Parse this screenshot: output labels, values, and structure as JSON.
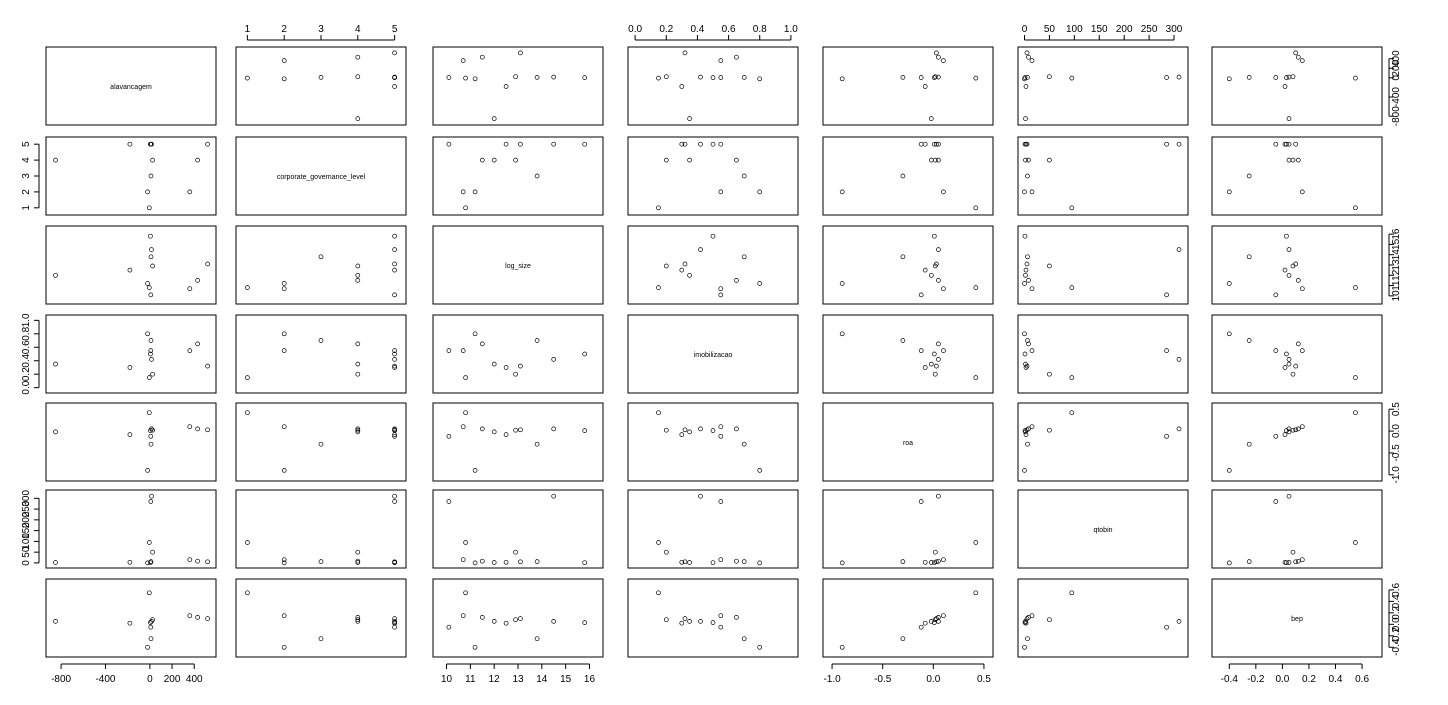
{
  "chart_data": {
    "type": "scatter",
    "subtype": "scatterplot-matrix",
    "variables": [
      {
        "name": "alavancagem",
        "range": [
          -900,
          560
        ],
        "ticks": [
          {
            "v": -800,
            "t": "-800"
          },
          {
            "v": -400,
            "t": "-400"
          },
          {
            "v": 0,
            "t": "0"
          },
          {
            "v": 200,
            "t": "200"
          },
          {
            "v": 400,
            "t": "400"
          }
        ]
      },
      {
        "name": "corporate_governance_level",
        "range": [
          0.8,
          5.2
        ],
        "ticks": [
          {
            "v": 1,
            "t": "1"
          },
          {
            "v": 2,
            "t": "2"
          },
          {
            "v": 3,
            "t": "3"
          },
          {
            "v": 4,
            "t": "4"
          },
          {
            "v": 5,
            "t": "5"
          }
        ]
      },
      {
        "name": "log_size",
        "range": [
          9.6,
          16.4
        ],
        "ticks": [
          {
            "v": 10,
            "t": "10"
          },
          {
            "v": 11,
            "t": "11"
          },
          {
            "v": 12,
            "t": "12"
          },
          {
            "v": 13,
            "t": "13"
          },
          {
            "v": 14,
            "t": "14"
          },
          {
            "v": 15,
            "t": "15"
          },
          {
            "v": 16,
            "t": "16"
          }
        ]
      },
      {
        "name": "imobilizacao",
        "range": [
          -0.02,
          1.02
        ],
        "ticks": [
          {
            "v": 0,
            "t": "0.0"
          },
          {
            "v": 0.2,
            "t": "0.2"
          },
          {
            "v": 0.4,
            "t": "0.4"
          },
          {
            "v": 0.6,
            "t": "0.6"
          },
          {
            "v": 0.8,
            "t": "0.8"
          },
          {
            "v": 1.0,
            "t": "1.0"
          }
        ]
      },
      {
        "name": "roa",
        "range": [
          -1.05,
          0.55
        ],
        "ticks": [
          {
            "v": -1.0,
            "t": "-1.0"
          },
          {
            "v": -0.5,
            "t": "-0.5"
          },
          {
            "v": 0,
            "t": "0.0"
          },
          {
            "v": 0.5,
            "t": "0.5"
          }
        ]
      },
      {
        "name": "qtobin",
        "range": [
          -5,
          320
        ],
        "ticks": [
          {
            "v": 0,
            "t": "0"
          },
          {
            "v": 50,
            "t": "50"
          },
          {
            "v": 100,
            "t": "100"
          },
          {
            "v": 150,
            "t": "150"
          },
          {
            "v": 200,
            "t": "200"
          },
          {
            "v": 250,
            "t": "250"
          },
          {
            "v": 300,
            "t": "300"
          }
        ]
      },
      {
        "name": "bep",
        "range": [
          -0.5,
          0.72
        ],
        "ticks": [
          {
            "v": -0.4,
            "t": "-0.4"
          },
          {
            "v": -0.2,
            "t": "-0.2"
          },
          {
            "v": 0,
            "t": "0.0"
          },
          {
            "v": 0.2,
            "t": "0.2"
          },
          {
            "v": 0.4,
            "t": "0.4"
          },
          {
            "v": 0.6,
            "t": "0.6"
          }
        ]
      }
    ],
    "axis_sides": {
      "bottom": [
        0,
        2,
        4,
        6
      ],
      "top": [
        1,
        3,
        5
      ],
      "left": [
        1,
        3,
        5
      ],
      "right": [
        0,
        2,
        4,
        6
      ]
    },
    "points_estimated": [
      {
        "alavancagem": -850,
        "corporate_governance_level": 4,
        "log_size": 12.0,
        "imobilizacao": 0.35,
        "roa": -0.02,
        "qtobin": 2,
        "bep": 0.05
      },
      {
        "alavancagem": 520,
        "corporate_governance_level": 5,
        "log_size": 13.1,
        "imobilizacao": 0.32,
        "roa": 0.03,
        "qtobin": 5,
        "bep": 0.1
      },
      {
        "alavancagem": 430,
        "corporate_governance_level": 4,
        "log_size": 11.5,
        "imobilizacao": 0.65,
        "roa": 0.05,
        "qtobin": 8,
        "bep": 0.12
      },
      {
        "alavancagem": 360,
        "corporate_governance_level": 2,
        "log_size": 10.7,
        "imobilizacao": 0.55,
        "roa": 0.1,
        "qtobin": 15,
        "bep": 0.15
      },
      {
        "alavancagem": -180,
        "corporate_governance_level": 5,
        "log_size": 12.5,
        "imobilizacao": 0.3,
        "roa": -0.08,
        "qtobin": 3,
        "bep": 0.02
      },
      {
        "alavancagem": 15,
        "corporate_governance_level": 5,
        "log_size": 14.5,
        "imobilizacao": 0.42,
        "roa": 0.05,
        "qtobin": 310,
        "bep": 0.05
      },
      {
        "alavancagem": 8,
        "corporate_governance_level": 5,
        "log_size": 10.1,
        "imobilizacao": 0.55,
        "roa": -0.12,
        "qtobin": 285,
        "bep": -0.05
      },
      {
        "alavancagem": 25,
        "corporate_governance_level": 4,
        "log_size": 12.9,
        "imobilizacao": 0.2,
        "roa": 0.02,
        "qtobin": 50,
        "bep": 0.08
      },
      {
        "alavancagem": 10,
        "corporate_governance_level": 3,
        "log_size": 13.8,
        "imobilizacao": 0.7,
        "roa": -0.3,
        "qtobin": 6,
        "bep": -0.25
      },
      {
        "alavancagem": -5,
        "corporate_governance_level": 1,
        "log_size": 10.8,
        "imobilizacao": 0.15,
        "roa": 0.42,
        "qtobin": 95,
        "bep": 0.55
      },
      {
        "alavancagem": 5,
        "corporate_governance_level": 5,
        "log_size": 15.8,
        "imobilizacao": 0.5,
        "roa": 0.01,
        "qtobin": 1,
        "bep": 0.03
      },
      {
        "alavancagem": -20,
        "corporate_governance_level": 2,
        "log_size": 11.2,
        "imobilizacao": 0.8,
        "roa": -0.9,
        "qtobin": 0,
        "bep": -0.4
      }
    ]
  }
}
